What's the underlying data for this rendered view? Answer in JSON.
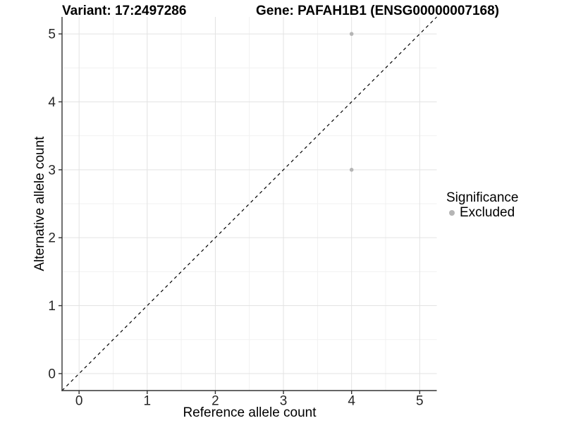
{
  "chart_data": {
    "type": "scatter",
    "titles": {
      "variant": "Variant: 17:2497286",
      "gene": "Gene: PAFAH1B1 (ENSG00000007168)"
    },
    "xlabel": "Reference allele count",
    "ylabel": "Alternative allele count",
    "xlim": [
      -0.25,
      5.25
    ],
    "ylim": [
      -0.25,
      5.25
    ],
    "x_ticks": [
      0,
      1,
      2,
      3,
      4,
      5
    ],
    "y_ticks": [
      0,
      1,
      2,
      3,
      4,
      5
    ],
    "x_minor_ticks": [
      0.5,
      1.5,
      2.5,
      3.5,
      4.5
    ],
    "y_minor_ticks": [
      0.5,
      1.5,
      2.5,
      3.5,
      4.5
    ],
    "grid": true,
    "series": [
      {
        "name": "Excluded",
        "color": "#b5b5b5",
        "points": [
          {
            "x": 4,
            "y": 5
          },
          {
            "x": 4,
            "y": 3
          }
        ]
      }
    ],
    "reference_line": {
      "type": "identity",
      "style": "dashed",
      "color": "#000000"
    },
    "legend": {
      "position": "right",
      "title": "Significance",
      "entries": [
        {
          "label": "Excluded",
          "color": "#b5b5b5"
        }
      ]
    }
  },
  "colors": {
    "background": "#ffffff",
    "grid_major": "#e3e3e3",
    "grid_minor": "#f1f1f1",
    "axis_line": "#333333",
    "tick_label": "#262626",
    "point": "#b5b5b5"
  }
}
